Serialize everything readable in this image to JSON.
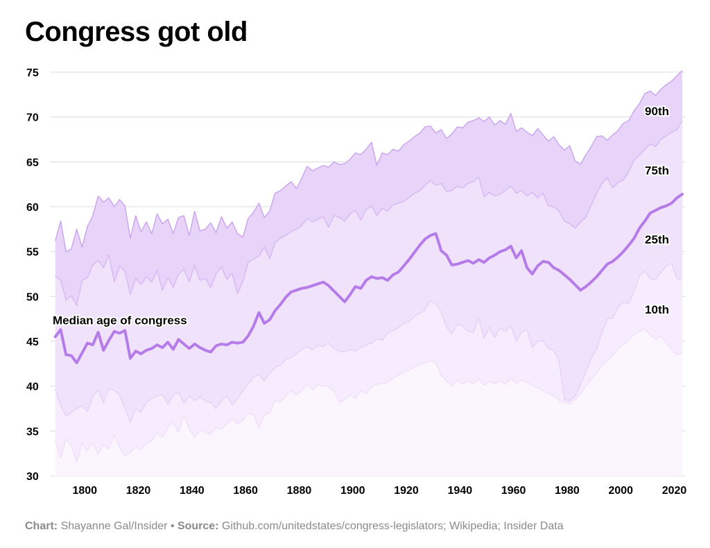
{
  "title": "Congress got old",
  "footer": {
    "chart_label": "Chart:",
    "chart_credit": "Shayanne Gal/Insider",
    "separator": " • ",
    "source_label": "Source:",
    "source_text": "Github.com/unitedstates/congress-legislators; Wikipedia; Insider Data"
  },
  "colors": {
    "band_90_75": "#e8d4f9",
    "band_75_25": "#f0e2fb",
    "band_25_10": "#f6ecfd",
    "band_10_base": "#fbf6fe",
    "line_90": "#c9a2f0",
    "line_75": "#d7b8f4",
    "line_25": "#e6d0f8",
    "line_10": "#efdffa",
    "median": "#b57ce9",
    "grid": "#dcdcdc"
  },
  "chart_data": {
    "type": "area",
    "title": "Congress got old",
    "xlim": [
      1787,
      2024
    ],
    "ylim": [
      30,
      75
    ],
    "x_ticks": [
      1800,
      1820,
      1840,
      1860,
      1880,
      1900,
      1920,
      1940,
      1960,
      1980,
      2000,
      2020
    ],
    "y_ticks": [
      30,
      35,
      40,
      45,
      50,
      55,
      60,
      65,
      70,
      75
    ],
    "grid": true,
    "annotation": "Median age of congress",
    "x": [
      1789,
      1791,
      1793,
      1795,
      1797,
      1799,
      1801,
      1803,
      1805,
      1807,
      1809,
      1811,
      1813,
      1815,
      1817,
      1819,
      1821,
      1823,
      1825,
      1827,
      1829,
      1831,
      1833,
      1835,
      1837,
      1839,
      1841,
      1843,
      1845,
      1847,
      1849,
      1851,
      1853,
      1855,
      1857,
      1859,
      1861,
      1863,
      1865,
      1867,
      1869,
      1871,
      1873,
      1875,
      1877,
      1879,
      1881,
      1883,
      1885,
      1887,
      1889,
      1891,
      1893,
      1895,
      1897,
      1899,
      1901,
      1903,
      1905,
      1907,
      1909,
      1911,
      1913,
      1915,
      1917,
      1919,
      1921,
      1923,
      1925,
      1927,
      1929,
      1931,
      1933,
      1935,
      1937,
      1939,
      1941,
      1943,
      1945,
      1947,
      1949,
      1951,
      1953,
      1955,
      1957,
      1959,
      1961,
      1963,
      1965,
      1967,
      1969,
      1971,
      1973,
      1975,
      1977,
      1979,
      1981,
      1983,
      1985,
      1987,
      1989,
      1991,
      1993,
      1995,
      1997,
      1999,
      2001,
      2003,
      2005,
      2007,
      2009,
      2011,
      2013,
      2015,
      2017,
      2019,
      2021,
      2023
    ],
    "series": [
      {
        "name": "90th",
        "values": [
          56.2,
          58.4,
          55.0,
          55.3,
          57.5,
          55.5,
          57.8,
          59.0,
          61.2,
          60.5,
          61.0,
          60.0,
          60.8,
          60.1,
          56.5,
          59.0,
          57.2,
          58.3,
          57.0,
          59.2,
          58.1,
          58.6,
          57.0,
          58.8,
          59.0,
          56.8,
          59.5,
          57.3,
          57.5,
          58.2,
          57.1,
          58.9,
          57.6,
          58.3,
          57.0,
          56.6,
          58.7,
          59.4,
          60.4,
          58.8,
          59.5,
          61.5,
          61.8,
          62.3,
          62.8,
          62.0,
          63.2,
          64.5,
          64.0,
          64.3,
          64.6,
          64.4,
          65.0,
          64.7,
          64.8,
          65.3,
          66.0,
          65.8,
          66.4,
          67.2,
          64.6,
          66.0,
          65.8,
          66.4,
          66.2,
          66.9,
          67.3,
          67.8,
          68.2,
          68.9,
          69.0,
          68.2,
          68.6,
          67.6,
          68.1,
          68.9,
          68.8,
          69.4,
          69.6,
          69.9,
          69.5,
          70.0,
          69.1,
          69.6,
          69.2,
          70.4,
          68.4,
          68.8,
          68.3,
          67.9,
          68.7,
          68.0,
          67.3,
          67.8,
          66.9,
          66.3,
          66.8,
          65.1,
          64.7,
          65.8,
          66.7,
          67.8,
          67.9,
          67.4,
          68.0,
          68.5,
          69.3,
          69.6,
          70.7,
          71.5,
          72.6,
          72.9,
          72.4,
          73.1,
          73.6,
          74.0,
          74.6,
          75.2
        ]
      },
      {
        "name": "75th",
        "values": [
          52.3,
          51.8,
          49.6,
          50.1,
          49.0,
          51.8,
          52.1,
          53.5,
          54.0,
          53.2,
          54.6,
          51.6,
          53.4,
          52.8,
          50.2,
          52.0,
          51.3,
          52.2,
          51.6,
          52.9,
          50.7,
          52.1,
          51.0,
          52.5,
          53.0,
          51.6,
          53.5,
          51.8,
          52.0,
          51.0,
          52.5,
          53.3,
          51.9,
          52.6,
          50.3,
          51.7,
          53.8,
          54.2,
          54.5,
          55.5,
          54.2,
          56.0,
          56.5,
          56.8,
          57.2,
          57.5,
          57.9,
          58.7,
          58.3,
          58.6,
          58.9,
          57.7,
          59.0,
          58.8,
          58.4,
          59.2,
          59.6,
          58.5,
          59.7,
          60.1,
          59.0,
          59.8,
          59.5,
          60.2,
          60.4,
          60.6,
          61.0,
          61.5,
          61.8,
          62.4,
          62.9,
          62.4,
          62.6,
          61.7,
          61.8,
          62.3,
          62.1,
          62.6,
          62.8,
          63.3,
          61.1,
          61.6,
          61.2,
          61.4,
          61.8,
          62.3,
          61.5,
          61.8,
          61.2,
          61.6,
          61.0,
          61.5,
          60.1,
          60.0,
          59.5,
          58.4,
          58.1,
          57.6,
          58.3,
          58.8,
          60.2,
          61.5,
          62.6,
          63.2,
          62.1,
          62.7,
          63.0,
          63.9,
          65.2,
          65.8,
          66.4,
          67.0,
          66.7,
          67.5,
          67.9,
          68.3,
          68.6,
          69.6
        ]
      },
      {
        "name": "25th",
        "values": [
          39.7,
          37.8,
          36.6,
          37.1,
          37.5,
          37.8,
          37.2,
          38.8,
          39.6,
          38.1,
          39.8,
          39.5,
          39.0,
          37.5,
          36.0,
          37.5,
          37.1,
          38.2,
          38.6,
          38.9,
          39.1,
          38.0,
          39.0,
          39.3,
          38.1,
          38.9,
          38.4,
          38.8,
          38.3,
          38.2,
          37.5,
          38.4,
          38.9,
          37.9,
          38.6,
          39.5,
          40.2,
          41.0,
          41.3,
          40.6,
          41.4,
          42.1,
          42.3,
          43.0,
          43.2,
          43.6,
          44.1,
          44.4,
          44.0,
          44.6,
          44.4,
          44.8,
          44.2,
          43.9,
          43.8,
          44.1,
          43.9,
          44.3,
          44.6,
          44.8,
          45.3,
          45.1,
          45.9,
          46.2,
          46.5,
          47.0,
          47.2,
          47.8,
          48.1,
          48.5,
          49.5,
          49.2,
          48.3,
          46.6,
          45.8,
          46.9,
          46.7,
          46.1,
          46.0,
          47.6,
          45.3,
          46.6,
          45.4,
          46.5,
          46.1,
          46.8,
          45.0,
          46.0,
          46.3,
          44.3,
          45.0,
          45.1,
          44.2,
          44.0,
          42.8,
          38.5,
          38.4,
          38.9,
          40.2,
          41.6,
          43.1,
          44.2,
          46.0,
          47.5,
          47.6,
          48.8,
          49.4,
          49.2,
          50.6,
          52.3,
          52.8,
          52.0,
          51.9,
          52.7,
          53.4,
          53.7,
          52.0,
          51.8
        ]
      },
      {
        "name": "10th",
        "values": [
          33.9,
          32.0,
          34.1,
          33.4,
          31.5,
          33.6,
          32.8,
          33.7,
          32.4,
          33.5,
          33.0,
          34.5,
          33.2,
          32.2,
          32.6,
          33.2,
          32.9,
          33.6,
          33.9,
          34.8,
          34.3,
          35.4,
          36.0,
          34.8,
          36.8,
          35.2,
          34.3,
          35.1,
          34.9,
          34.6,
          35.4,
          35.2,
          35.8,
          36.3,
          35.8,
          36.2,
          37.0,
          36.8,
          35.3,
          36.8,
          37.0,
          38.4,
          38.2,
          38.9,
          39.5,
          39.0,
          39.5,
          40.2,
          39.6,
          40.2,
          40.0,
          40.0,
          39.4,
          38.2,
          38.5,
          39.0,
          38.6,
          39.5,
          39.2,
          39.9,
          40.2,
          40.3,
          40.4,
          40.9,
          41.2,
          41.6,
          41.8,
          42.1,
          42.5,
          42.6,
          42.8,
          42.6,
          41.2,
          40.6,
          40.0,
          40.7,
          40.2,
          40.6,
          40.3,
          40.8,
          40.1,
          40.5,
          40.3,
          40.6,
          40.2,
          40.9,
          40.3,
          40.7,
          40.4,
          40.1,
          39.8,
          39.5,
          39.2,
          38.9,
          38.4,
          38.2,
          38.0,
          38.5,
          39.2,
          40.0,
          40.8,
          41.5,
          42.3,
          42.9,
          43.4,
          44.2,
          44.6,
          45.1,
          45.8,
          46.1,
          46.4,
          45.7,
          45.2,
          45.6,
          44.8,
          44.0,
          43.5,
          43.7
        ]
      },
      {
        "name": "Median age of congress",
        "values": [
          45.5,
          46.3,
          43.5,
          43.4,
          42.6,
          43.7,
          44.8,
          44.6,
          46.0,
          44.0,
          45.1,
          46.1,
          45.9,
          46.2,
          43.1,
          43.9,
          43.6,
          44.0,
          44.2,
          44.6,
          44.3,
          44.9,
          44.1,
          45.2,
          44.7,
          44.2,
          44.7,
          44.3,
          44.0,
          43.8,
          44.5,
          44.7,
          44.6,
          44.9,
          44.8,
          44.9,
          45.6,
          46.7,
          48.2,
          47.0,
          47.4,
          48.4,
          49.1,
          49.9,
          50.5,
          50.7,
          50.9,
          51.0,
          51.2,
          51.4,
          51.6,
          51.2,
          50.6,
          50.0,
          49.4,
          50.2,
          51.1,
          50.9,
          51.8,
          52.2,
          52.0,
          52.1,
          51.8,
          52.4,
          52.7,
          53.4,
          54.1,
          54.9,
          55.7,
          56.4,
          56.8,
          57.0,
          55.1,
          54.6,
          53.5,
          53.6,
          53.8,
          54.0,
          53.7,
          54.1,
          53.8,
          54.3,
          54.6,
          55.0,
          55.2,
          55.6,
          54.3,
          55.1,
          53.2,
          52.5,
          53.4,
          53.9,
          53.8,
          53.2,
          52.9,
          52.4,
          51.9,
          51.3,
          50.7,
          51.1,
          51.6,
          52.2,
          52.9,
          53.6,
          53.9,
          54.4,
          55.0,
          55.7,
          56.5,
          57.6,
          58.4,
          59.3,
          59.6,
          59.9,
          60.1,
          60.4,
          61.0,
          61.4
        ]
      }
    ],
    "band_labels": [
      "90th",
      "75th",
      "25th",
      "10th"
    ]
  }
}
